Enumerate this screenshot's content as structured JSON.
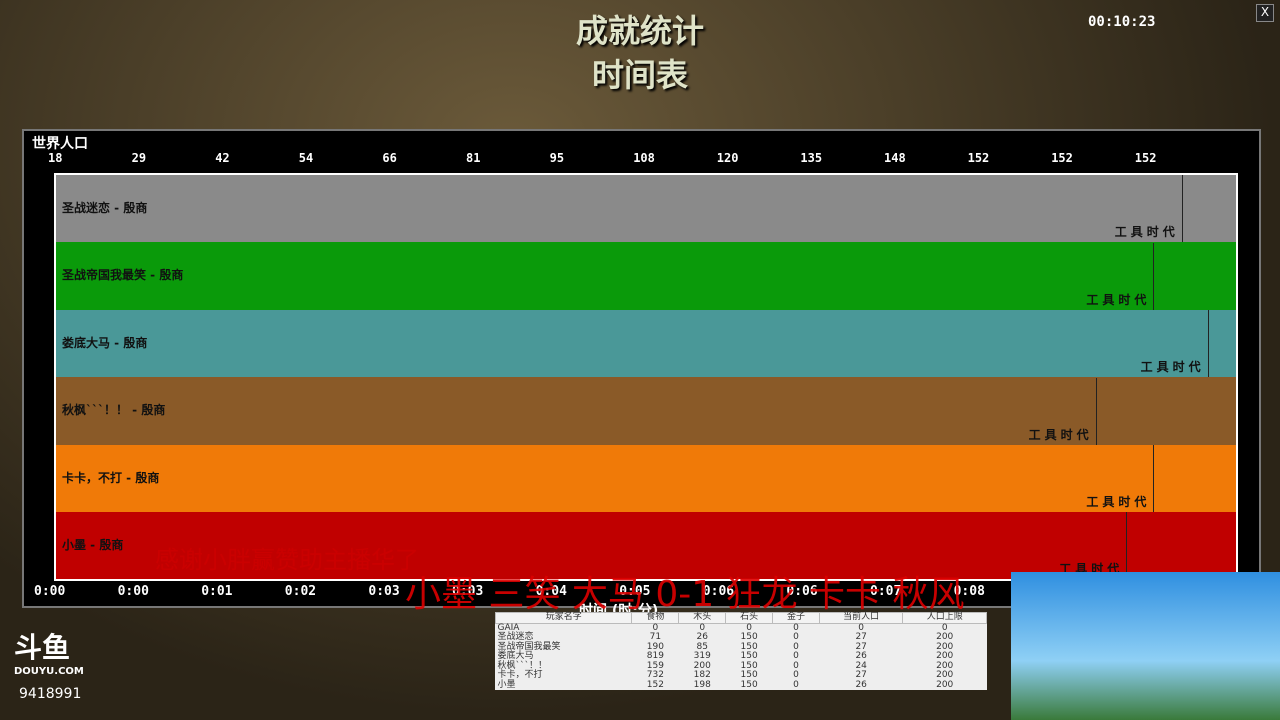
{
  "header": {
    "title": "成就统计",
    "subtitle": "时间表",
    "clock": "00:10:23",
    "close": "X"
  },
  "chart_data": {
    "type": "area",
    "title": "世界人口",
    "top_ticks": [
      "18",
      "29",
      "42",
      "54",
      "66",
      "81",
      "95",
      "108",
      "120",
      "135",
      "148",
      "152",
      "152",
      "152"
    ],
    "x_ticks": [
      "0:00",
      "0:00",
      "0:01",
      "0:02",
      "0:03",
      "0:03",
      "0:04",
      "0:05",
      "0:06",
      "0:06",
      "0:07",
      "0:08"
    ],
    "xlabel": "时间 (时:分)",
    "series": [
      {
        "name": "圣战迷恋 - 殷商",
        "color": "#8a8a8a",
        "age": "工具时代",
        "age_at": 0.954
      },
      {
        "name": "圣战帝国我最笑 - 殷商",
        "color": "#0a9a0a",
        "age": "工具时代",
        "age_at": 0.93
      },
      {
        "name": "娄底大马 - 殷商",
        "color": "#4a9898",
        "age": "工具时代",
        "age_at": 0.976
      },
      {
        "name": "秋枫```！！ - 殷商",
        "color": "#8a5a28",
        "age": "工具时代",
        "age_at": 0.881
      },
      {
        "name": "卡卡，不打 - 殷商",
        "color": "#f07a08",
        "age": "工具时代",
        "age_at": 0.93
      },
      {
        "name": "小墨 - 殷商",
        "color": "#c00000",
        "age": "工具时代",
        "age_at": 0.907
      }
    ]
  },
  "overlay": {
    "line1": "感谢小胖赢赞助主播华了",
    "line2": "小墨 三笑 大马 0-1 狂龙 卡卡 秋风"
  },
  "table": {
    "headers": [
      "玩家名字",
      "食物",
      "木头",
      "石头",
      "金子",
      "当前人口",
      "人口上限"
    ],
    "rows": [
      [
        "GAIA",
        "0",
        "0",
        "0",
        "0",
        "0",
        "0"
      ],
      [
        "圣战迷恋",
        "71",
        "26",
        "150",
        "0",
        "27",
        "200"
      ],
      [
        "圣战帝国我最笑",
        "190",
        "85",
        "150",
        "0",
        "27",
        "200"
      ],
      [
        "娄底大马",
        "819",
        "319",
        "150",
        "0",
        "26",
        "200"
      ],
      [
        "秋枫```！！",
        "159",
        "200",
        "150",
        "0",
        "24",
        "200"
      ],
      [
        "卡卡，不打",
        "732",
        "182",
        "150",
        "0",
        "27",
        "200"
      ],
      [
        "小墨",
        "152",
        "198",
        "150",
        "0",
        "26",
        "200"
      ]
    ]
  },
  "stream": {
    "logo": "斗鱼",
    "logo_sub": "DOUYU.COM",
    "room": "9418991"
  }
}
